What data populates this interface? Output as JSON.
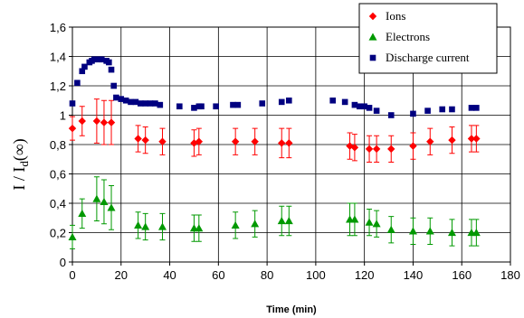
{
  "chart_data": {
    "type": "scatter",
    "xlabel": "Time (min)",
    "ylabel": {
      "main": "I / I",
      "sub": "d",
      "suffix": "(∞)"
    },
    "xlim": [
      0,
      180
    ],
    "ylim": [
      0,
      1.6
    ],
    "x_ticks": [
      0,
      20,
      40,
      60,
      80,
      100,
      120,
      140,
      160,
      180
    ],
    "y_ticks": [
      0,
      0.2,
      0.4,
      0.6,
      0.8,
      1,
      1.2,
      1.4,
      1.6
    ],
    "x_tick_labels": [
      "0",
      "20",
      "40",
      "60",
      "80",
      "100",
      "120",
      "140",
      "160",
      "180"
    ],
    "y_tick_labels": [
      "0",
      "0,2",
      "0,4",
      "0,6",
      "0,8",
      "1",
      "1,2",
      "1,4",
      "1,6"
    ],
    "grid": true,
    "legend_position": "top-right",
    "series": [
      {
        "name": "Ions",
        "marker": "diamond",
        "color": "#ff0000",
        "points": [
          {
            "x": 0,
            "y": 0.91,
            "err": 0.08
          },
          {
            "x": 4,
            "y": 0.96,
            "err": 0.1
          },
          {
            "x": 10,
            "y": 0.96,
            "err": 0.15
          },
          {
            "x": 13,
            "y": 0.95,
            "err": 0.15
          },
          {
            "x": 16,
            "y": 0.95,
            "err": 0.15
          },
          {
            "x": 27,
            "y": 0.84,
            "err": 0.09
          },
          {
            "x": 30,
            "y": 0.83,
            "err": 0.09
          },
          {
            "x": 37,
            "y": 0.82,
            "err": 0.09
          },
          {
            "x": 50,
            "y": 0.81,
            "err": 0.09
          },
          {
            "x": 52,
            "y": 0.82,
            "err": 0.09
          },
          {
            "x": 67,
            "y": 0.82,
            "err": 0.09
          },
          {
            "x": 75,
            "y": 0.82,
            "err": 0.09
          },
          {
            "x": 86,
            "y": 0.81,
            "err": 0.1
          },
          {
            "x": 89,
            "y": 0.81,
            "err": 0.1
          },
          {
            "x": 114,
            "y": 0.79,
            "err": 0.09
          },
          {
            "x": 116,
            "y": 0.78,
            "err": 0.09
          },
          {
            "x": 122,
            "y": 0.77,
            "err": 0.09
          },
          {
            "x": 125,
            "y": 0.77,
            "err": 0.09
          },
          {
            "x": 131,
            "y": 0.77,
            "err": 0.09
          },
          {
            "x": 140,
            "y": 0.79,
            "err": 0.09
          },
          {
            "x": 147,
            "y": 0.82,
            "err": 0.09
          },
          {
            "x": 156,
            "y": 0.83,
            "err": 0.09
          },
          {
            "x": 164,
            "y": 0.84,
            "err": 0.09
          },
          {
            "x": 166,
            "y": 0.84,
            "err": 0.09
          }
        ]
      },
      {
        "name": "Electrons",
        "marker": "triangle",
        "color": "#009900",
        "points": [
          {
            "x": 0,
            "y": 0.17,
            "err": 0.08
          },
          {
            "x": 4,
            "y": 0.33,
            "err": 0.1
          },
          {
            "x": 10,
            "y": 0.43,
            "err": 0.15
          },
          {
            "x": 13,
            "y": 0.41,
            "err": 0.15
          },
          {
            "x": 16,
            "y": 0.37,
            "err": 0.15
          },
          {
            "x": 27,
            "y": 0.25,
            "err": 0.09
          },
          {
            "x": 30,
            "y": 0.24,
            "err": 0.09
          },
          {
            "x": 37,
            "y": 0.24,
            "err": 0.09
          },
          {
            "x": 50,
            "y": 0.23,
            "err": 0.09
          },
          {
            "x": 52,
            "y": 0.23,
            "err": 0.09
          },
          {
            "x": 67,
            "y": 0.25,
            "err": 0.09
          },
          {
            "x": 75,
            "y": 0.26,
            "err": 0.09
          },
          {
            "x": 86,
            "y": 0.28,
            "err": 0.1
          },
          {
            "x": 89,
            "y": 0.28,
            "err": 0.1
          },
          {
            "x": 114,
            "y": 0.29,
            "err": 0.11
          },
          {
            "x": 116,
            "y": 0.29,
            "err": 0.11
          },
          {
            "x": 122,
            "y": 0.27,
            "err": 0.09
          },
          {
            "x": 125,
            "y": 0.26,
            "err": 0.09
          },
          {
            "x": 131,
            "y": 0.22,
            "err": 0.09
          },
          {
            "x": 140,
            "y": 0.21,
            "err": 0.09
          },
          {
            "x": 147,
            "y": 0.21,
            "err": 0.09
          },
          {
            "x": 156,
            "y": 0.2,
            "err": 0.09
          },
          {
            "x": 164,
            "y": 0.2,
            "err": 0.09
          },
          {
            "x": 166,
            "y": 0.2,
            "err": 0.09
          }
        ]
      },
      {
        "name": "Discharge current",
        "marker": "square",
        "color": "#000080",
        "points": [
          {
            "x": 0,
            "y": 1.08
          },
          {
            "x": 2,
            "y": 1.22
          },
          {
            "x": 4,
            "y": 1.3
          },
          {
            "x": 5,
            "y": 1.33
          },
          {
            "x": 7,
            "y": 1.36
          },
          {
            "x": 8,
            "y": 1.37
          },
          {
            "x": 9,
            "y": 1.38
          },
          {
            "x": 11,
            "y": 1.38
          },
          {
            "x": 12,
            "y": 1.38
          },
          {
            "x": 14,
            "y": 1.37
          },
          {
            "x": 15,
            "y": 1.36
          },
          {
            "x": 16,
            "y": 1.31
          },
          {
            "x": 17,
            "y": 1.2
          },
          {
            "x": 18,
            "y": 1.12
          },
          {
            "x": 20,
            "y": 1.11
          },
          {
            "x": 22,
            "y": 1.1
          },
          {
            "x": 24,
            "y": 1.09
          },
          {
            "x": 26,
            "y": 1.09
          },
          {
            "x": 28,
            "y": 1.08
          },
          {
            "x": 30,
            "y": 1.08
          },
          {
            "x": 32,
            "y": 1.08
          },
          {
            "x": 34,
            "y": 1.08
          },
          {
            "x": 36,
            "y": 1.07
          },
          {
            "x": 44,
            "y": 1.06
          },
          {
            "x": 50,
            "y": 1.05
          },
          {
            "x": 52,
            "y": 1.06
          },
          {
            "x": 53,
            "y": 1.06
          },
          {
            "x": 59,
            "y": 1.06
          },
          {
            "x": 66,
            "y": 1.07
          },
          {
            "x": 68,
            "y": 1.07
          },
          {
            "x": 78,
            "y": 1.08
          },
          {
            "x": 86,
            "y": 1.09
          },
          {
            "x": 89,
            "y": 1.1
          },
          {
            "x": 107,
            "y": 1.1
          },
          {
            "x": 112,
            "y": 1.09
          },
          {
            "x": 116,
            "y": 1.07
          },
          {
            "x": 118,
            "y": 1.06
          },
          {
            "x": 120,
            "y": 1.06
          },
          {
            "x": 122,
            "y": 1.05
          },
          {
            "x": 125,
            "y": 1.03
          },
          {
            "x": 131,
            "y": 1.0
          },
          {
            "x": 140,
            "y": 1.01
          },
          {
            "x": 146,
            "y": 1.03
          },
          {
            "x": 152,
            "y": 1.04
          },
          {
            "x": 156,
            "y": 1.04
          },
          {
            "x": 164,
            "y": 1.05
          },
          {
            "x": 166,
            "y": 1.05
          }
        ]
      }
    ]
  }
}
